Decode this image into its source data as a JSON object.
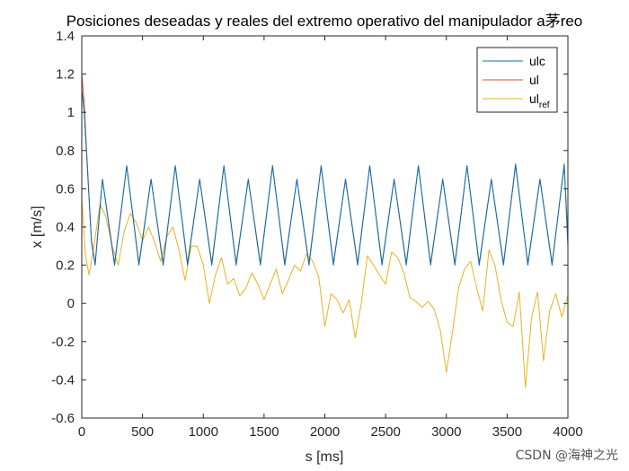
{
  "chart_data": {
    "type": "line",
    "title": "Posiciones deseadas y reales del extremo operativo del manipulador a茅reo",
    "xlabel": "s [ms]",
    "ylabel": "x [m/s]",
    "xlim": [
      0,
      4000
    ],
    "ylim": [
      -0.6,
      1.4
    ],
    "xticks": [
      0,
      500,
      1000,
      1500,
      2000,
      2500,
      3000,
      3500,
      4000
    ],
    "xtick_labels": [
      "0",
      "500",
      "1000",
      "1500",
      "2000",
      "2500",
      "3000",
      "3500",
      "4000"
    ],
    "yticks": [
      -0.6,
      -0.4,
      -0.2,
      0,
      0.2,
      0.4,
      0.6,
      0.8,
      1.0,
      1.2,
      1.4
    ],
    "ytick_labels": [
      "-0.6",
      "-0.4",
      "-0.2",
      "0",
      "0.2",
      "0.4",
      "0.6",
      "0.8",
      "1",
      "1.2",
      "1.4"
    ],
    "grid": false,
    "legend_position": "top-right",
    "series": [
      {
        "name": "ulc",
        "legend_main": "ulc",
        "legend_sub": "",
        "color": "#0072BD",
        "x": [
          0,
          20,
          40,
          60,
          80,
          110,
          170,
          270,
          370,
          470,
          570,
          670,
          770,
          870,
          970,
          1070,
          1170,
          1270,
          1370,
          1470,
          1570,
          1670,
          1770,
          1870,
          1970,
          2070,
          2170,
          2270,
          2370,
          2470,
          2570,
          2670,
          2770,
          2870,
          2970,
          3070,
          3170,
          3270,
          3370,
          3470,
          3570,
          3670,
          3770,
          3870,
          3970,
          4000
        ],
        "y": [
          1.12,
          1.0,
          0.78,
          0.55,
          0.32,
          0.2,
          0.65,
          0.2,
          0.72,
          0.2,
          0.65,
          0.2,
          0.72,
          0.2,
          0.65,
          0.2,
          0.72,
          0.2,
          0.65,
          0.2,
          0.72,
          0.2,
          0.65,
          0.2,
          0.72,
          0.2,
          0.65,
          0.2,
          0.72,
          0.2,
          0.65,
          0.2,
          0.72,
          0.2,
          0.65,
          0.2,
          0.72,
          0.2,
          0.65,
          0.2,
          0.73,
          0.2,
          0.65,
          0.2,
          0.73,
          0.3
        ]
      },
      {
        "name": "ul",
        "legend_main": "ul",
        "legend_sub": "",
        "color": "#D95319",
        "x": [
          0,
          20,
          40,
          60,
          80,
          110,
          170,
          270,
          370,
          470,
          570,
          670,
          770,
          870,
          970,
          1070,
          1170,
          1270,
          1370,
          1470,
          1570,
          1670,
          1770,
          1870,
          1970,
          2070,
          2170,
          2270,
          2370,
          2470,
          2570,
          2670,
          2770,
          2870,
          2970,
          3070,
          3170,
          3270,
          3370,
          3470,
          3570,
          3670,
          3770,
          3870,
          3970,
          4000
        ],
        "y": [
          1.2,
          1.05,
          0.8,
          0.56,
          0.33,
          0.21,
          0.65,
          0.21,
          0.72,
          0.21,
          0.65,
          0.21,
          0.72,
          0.21,
          0.65,
          0.21,
          0.72,
          0.21,
          0.65,
          0.21,
          0.72,
          0.21,
          0.65,
          0.21,
          0.72,
          0.21,
          0.65,
          0.21,
          0.72,
          0.21,
          0.65,
          0.21,
          0.72,
          0.21,
          0.65,
          0.21,
          0.72,
          0.21,
          0.65,
          0.21,
          0.72,
          0.21,
          0.65,
          0.21,
          0.72,
          0.35
        ]
      },
      {
        "name": "ulref",
        "legend_main": "ul",
        "legend_sub": "ref",
        "color": "#EDB120",
        "x": [
          0,
          30,
          60,
          100,
          150,
          200,
          250,
          300,
          350,
          400,
          450,
          500,
          550,
          600,
          650,
          700,
          750,
          800,
          850,
          900,
          950,
          1000,
          1050,
          1100,
          1150,
          1200,
          1250,
          1300,
          1350,
          1400,
          1450,
          1500,
          1550,
          1600,
          1650,
          1700,
          1750,
          1800,
          1850,
          1900,
          1950,
          2000,
          2050,
          2100,
          2150,
          2200,
          2250,
          2300,
          2350,
          2400,
          2450,
          2500,
          2550,
          2600,
          2650,
          2700,
          2750,
          2800,
          2850,
          2900,
          2950,
          3000,
          3050,
          3100,
          3150,
          3200,
          3250,
          3300,
          3350,
          3400,
          3450,
          3500,
          3550,
          3600,
          3650,
          3700,
          3750,
          3800,
          3850,
          3900,
          3950,
          4000
        ],
        "y": [
          0.55,
          0.25,
          0.15,
          0.3,
          0.52,
          0.45,
          0.3,
          0.2,
          0.38,
          0.47,
          0.42,
          0.33,
          0.4,
          0.32,
          0.22,
          0.35,
          0.4,
          0.28,
          0.12,
          0.3,
          0.3,
          0.2,
          0.0,
          0.15,
          0.24,
          0.1,
          0.13,
          0.04,
          0.08,
          0.16,
          0.1,
          0.02,
          0.1,
          0.18,
          0.05,
          0.12,
          0.2,
          0.17,
          0.26,
          0.22,
          0.14,
          -0.12,
          0.05,
          0.02,
          -0.05,
          0.02,
          -0.18,
          0.0,
          0.25,
          0.2,
          0.15,
          0.1,
          0.27,
          0.24,
          0.16,
          0.03,
          0.01,
          -0.02,
          0.01,
          -0.03,
          -0.14,
          -0.36,
          -0.15,
          0.08,
          0.18,
          0.22,
          0.08,
          -0.04,
          0.28,
          0.2,
          0.02,
          -0.1,
          -0.12,
          0.06,
          -0.44,
          -0.08,
          0.06,
          -0.3,
          -0.04,
          0.05,
          -0.07,
          0.04
        ]
      }
    ]
  },
  "watermark": "CSDN @海神之光"
}
